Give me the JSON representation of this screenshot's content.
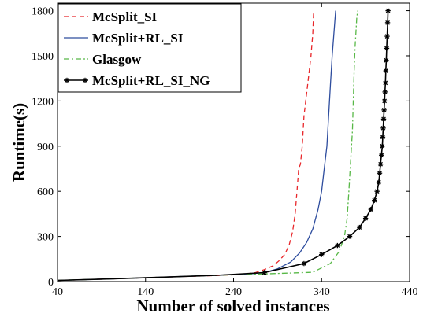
{
  "chart_data": {
    "type": "line",
    "title": "",
    "xlabel": "Number of solved instances",
    "ylabel": "Runtime(s)",
    "xlim": [
      40,
      440
    ],
    "ylim": [
      0,
      1850
    ],
    "xticks": [
      40,
      140,
      240,
      340,
      440
    ],
    "yticks": [
      0,
      300,
      600,
      900,
      1200,
      1500,
      1800
    ],
    "legend_position": "top-left",
    "grid": false,
    "series": [
      {
        "name": "McSplit_SI",
        "color": "#e8262a",
        "dash": "dashed",
        "marker": "none",
        "x": [
          40,
          100,
          160,
          220,
          250,
          265,
          275,
          285,
          292,
          298,
          303,
          307,
          310,
          312,
          314,
          316,
          318,
          320,
          322,
          324,
          326,
          328,
          330,
          331
        ],
        "y": [
          8,
          18,
          30,
          40,
          48,
          60,
          80,
          105,
          140,
          180,
          240,
          330,
          450,
          600,
          750,
          780,
          900,
          1100,
          1200,
          1300,
          1400,
          1500,
          1650,
          1800
        ]
      },
      {
        "name": "McSplit+RL_SI",
        "color": "#2e4d9e",
        "dash": "solid",
        "marker": "none",
        "x": [
          40,
          100,
          160,
          220,
          260,
          275,
          290,
          305,
          315,
          323,
          330,
          336,
          340,
          343,
          346,
          348,
          350,
          352,
          354,
          356
        ],
        "y": [
          8,
          18,
          30,
          42,
          52,
          60,
          85,
          130,
          190,
          260,
          350,
          480,
          600,
          750,
          900,
          1100,
          1300,
          1500,
          1650,
          1800
        ]
      },
      {
        "name": "Glasgow",
        "color": "#58b847",
        "dash": "dashdot",
        "marker": "none",
        "x": [
          40,
          100,
          160,
          220,
          280,
          330,
          350,
          360,
          366,
          369,
          371,
          373,
          375,
          376,
          377,
          378,
          379,
          380,
          381
        ],
        "y": [
          8,
          18,
          30,
          42,
          52,
          62,
          120,
          200,
          300,
          420,
          600,
          800,
          1000,
          1200,
          1400,
          1550,
          1650,
          1750,
          1800
        ]
      },
      {
        "name": "McSplit+RL_SI_NG",
        "color": "#000000",
        "dash": "solid",
        "marker": "star",
        "x": [
          40,
          100,
          160,
          220,
          275,
          320,
          340,
          358,
          372,
          383,
          390,
          396,
          400,
          403,
          405,
          406,
          407,
          408,
          409,
          409.5,
          410,
          410.5,
          411,
          411.5,
          412,
          412.5,
          413,
          413.5,
          414,
          414.5,
          415,
          415.5
        ],
        "y": [
          8,
          18,
          30,
          42,
          60,
          120,
          180,
          240,
          300,
          360,
          420,
          480,
          540,
          600,
          660,
          720,
          780,
          840,
          900,
          960,
          1020,
          1080,
          1140,
          1200,
          1260,
          1320,
          1400,
          1470,
          1550,
          1630,
          1720,
          1800
        ]
      }
    ]
  }
}
